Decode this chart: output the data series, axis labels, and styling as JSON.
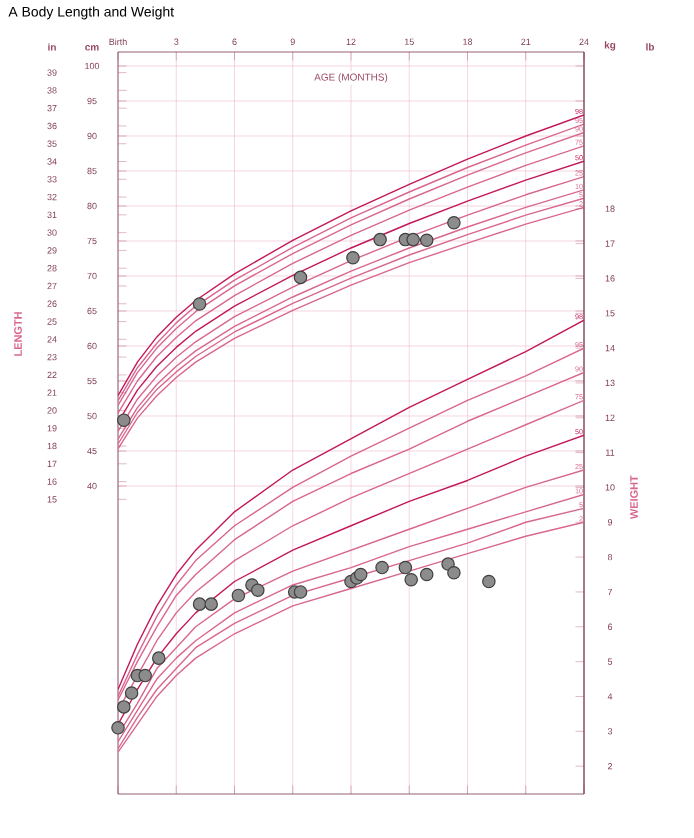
{
  "chart_data": {
    "type": "line",
    "title": "A  Body Length and Weight",
    "xlabel": "AGE (MONTHS)",
    "ylabel": "LENGTH",
    "y2label": "WEIGHT",
    "xlim": [
      0,
      24
    ],
    "xticks": [
      {
        "value": 0,
        "label": "Birth"
      },
      3,
      6,
      9,
      12,
      15,
      18,
      21,
      24
    ],
    "ylim": [
      -4,
      102
    ],
    "yticks": [
      40,
      45,
      50,
      55,
      60,
      65,
      70,
      75,
      80,
      85,
      90,
      95,
      100
    ],
    "y2lim": [
      1.2,
      22.5
    ],
    "y2ticks": [
      2,
      3,
      4,
      5,
      6,
      7,
      8,
      9,
      10,
      11,
      12,
      13,
      14,
      15,
      16,
      17,
      18
    ],
    "y3lim": [
      -1.57,
      40.16
    ],
    "y3ticks": [
      15,
      16,
      17,
      18,
      19,
      20,
      21,
      22,
      23,
      24,
      25,
      26,
      27,
      28,
      29,
      30,
      31,
      32,
      33,
      34,
      35,
      36,
      37,
      38,
      39
    ],
    "grid": true,
    "annotations": [
      "cm",
      "in",
      "kg",
      "lb"
    ],
    "x": [
      0,
      1,
      2,
      3,
      4,
      6,
      9,
      12,
      15,
      18,
      21,
      24
    ],
    "series": [
      {
        "name": "2",
        "color": "#d9668f",
        "values": [
          45.3,
          49.7,
          52.9,
          55.5,
          57.7,
          61.1,
          65.1,
          68.7,
          71.9,
          74.7,
          77.4,
          79.8
        ]
      },
      {
        "name": "5",
        "color": "#d9668f",
        "values": [
          46.0,
          50.5,
          53.8,
          56.3,
          58.5,
          62.0,
          66.1,
          69.7,
          73.0,
          75.9,
          78.7,
          81.1
        ]
      },
      {
        "name": "10",
        "color": "#d9668f",
        "values": [
          46.7,
          51.2,
          54.5,
          57.1,
          59.3,
          62.8,
          67.0,
          70.7,
          74.0,
          77.0,
          79.8,
          82.3
        ]
      },
      {
        "name": "25",
        "color": "#d9668f",
        "values": [
          47.8,
          52.4,
          55.7,
          58.4,
          60.6,
          64.2,
          68.4,
          72.2,
          75.6,
          78.7,
          81.6,
          84.2
        ]
      },
      {
        "name": "50",
        "color": "#c2185b",
        "values": [
          49.1,
          53.7,
          57.1,
          59.8,
          62.1,
          65.7,
          70.1,
          74.0,
          77.5,
          80.7,
          83.7,
          86.4
        ]
      },
      {
        "name": "75",
        "color": "#d9668f",
        "values": [
          50.4,
          55.0,
          58.5,
          61.2,
          63.6,
          67.2,
          71.8,
          75.8,
          79.4,
          82.7,
          85.8,
          88.6
        ]
      },
      {
        "name": "90",
        "color": "#d9668f",
        "values": [
          51.5,
          56.2,
          59.7,
          62.5,
          64.9,
          68.6,
          73.2,
          77.3,
          81.0,
          84.4,
          87.6,
          90.5
        ]
      },
      {
        "name": "95",
        "color": "#d9668f",
        "values": [
          52.2,
          56.9,
          60.4,
          63.3,
          65.7,
          69.4,
          74.1,
          78.3,
          82.0,
          85.5,
          88.7,
          91.7
        ]
      },
      {
        "name": "98",
        "color": "#c2185b",
        "values": [
          52.9,
          57.7,
          61.3,
          64.1,
          66.5,
          70.3,
          75.1,
          79.3,
          83.1,
          86.7,
          90.0,
          93.0
        ]
      },
      {
        "name": "2",
        "color": "#d9668f",
        "axis": "y2",
        "values": [
          2.4,
          3.2,
          4.0,
          4.6,
          5.1,
          5.8,
          6.6,
          7.1,
          7.6,
          8.1,
          8.6,
          9.0
        ]
      },
      {
        "name": "5",
        "color": "#d9668f",
        "axis": "y2",
        "values": [
          2.5,
          3.4,
          4.2,
          4.8,
          5.4,
          6.1,
          6.9,
          7.4,
          7.9,
          8.4,
          9.0,
          9.4
        ]
      },
      {
        "name": "10",
        "color": "#d9668f",
        "axis": "y2",
        "values": [
          2.7,
          3.6,
          4.5,
          5.1,
          5.6,
          6.4,
          7.2,
          7.7,
          8.3,
          8.8,
          9.3,
          9.8
        ]
      },
      {
        "name": "25",
        "color": "#d9668f",
        "axis": "y2",
        "values": [
          2.9,
          3.8,
          4.8,
          5.4,
          6.0,
          6.8,
          7.6,
          8.2,
          8.8,
          9.4,
          10.0,
          10.5
        ]
      },
      {
        "name": "50",
        "color": "#c2185b",
        "axis": "y2",
        "values": [
          3.2,
          4.2,
          5.1,
          5.8,
          6.4,
          7.3,
          8.2,
          8.9,
          9.6,
          10.2,
          10.9,
          11.5
        ]
      },
      {
        "name": "75",
        "color": "#d9668f",
        "axis": "y2",
        "values": [
          3.6,
          4.6,
          5.6,
          6.4,
          7.0,
          7.9,
          8.9,
          9.7,
          10.4,
          11.1,
          11.8,
          12.5
        ]
      },
      {
        "name": "90",
        "color": "#d9668f",
        "axis": "y2",
        "values": [
          3.9,
          5.0,
          6.0,
          6.9,
          7.5,
          8.5,
          9.6,
          10.4,
          11.1,
          11.9,
          12.6,
          13.3
        ]
      },
      {
        "name": "95",
        "color": "#d9668f",
        "axis": "y2",
        "values": [
          4.0,
          5.2,
          6.3,
          7.2,
          7.9,
          8.9,
          10.0,
          10.9,
          11.7,
          12.5,
          13.2,
          14.0
        ]
      },
      {
        "name": "98",
        "color": "#c2185b",
        "axis": "y2",
        "values": [
          4.2,
          5.5,
          6.6,
          7.5,
          8.2,
          9.3,
          10.5,
          11.4,
          12.3,
          13.1,
          13.9,
          14.8
        ]
      },
      {
        "type": "scatter",
        "color": "#8c8c8c",
        "x": [
          0.3,
          4.2,
          9.4,
          12.1,
          13.5,
          14.8,
          15.2,
          15.9,
          17.3
        ],
        "values": [
          49.4,
          66.0,
          69.8,
          72.6,
          75.2,
          75.2,
          75.2,
          75.1,
          77.6
        ]
      },
      {
        "type": "scatter",
        "color": "#8c8c8c",
        "axis": "y2",
        "x": [
          0.0,
          0.3,
          0.7,
          1.0,
          1.4,
          2.1,
          4.2,
          4.8,
          6.2,
          6.9,
          7.2,
          9.1,
          9.4,
          12.0,
          12.3,
          12.5,
          13.6,
          14.8,
          15.1,
          15.9,
          17.0,
          17.3,
          19.1
        ],
        "values": [
          3.1,
          3.7,
          4.1,
          4.6,
          4.6,
          5.1,
          6.65,
          6.65,
          6.9,
          7.2,
          7.05,
          7.0,
          7.0,
          7.3,
          7.4,
          7.5,
          7.7,
          7.7,
          7.35,
          7.5,
          7.8,
          7.55,
          7.3
        ]
      }
    ]
  }
}
